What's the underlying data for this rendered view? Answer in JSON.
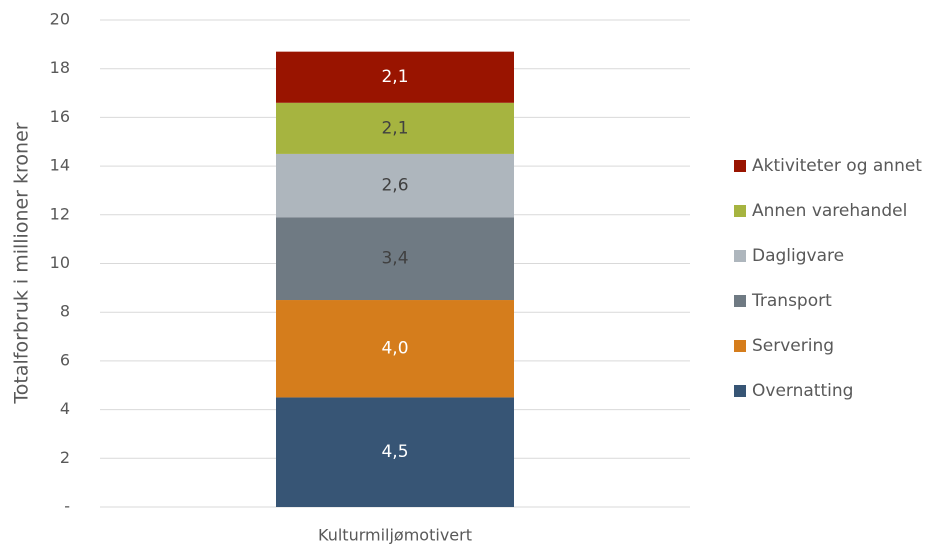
{
  "chart_data": {
    "type": "stacked_bar",
    "y_label": "Totalforbruk i millioner kroner",
    "categories": [
      "Kulturmiljømotivert"
    ],
    "series": [
      {
        "name": "Overnatting",
        "color": "#375575",
        "label_color": "#ffffff",
        "values": [
          4.5
        ],
        "value_labels": [
          "4,5"
        ]
      },
      {
        "name": "Servering",
        "color": "#d57d1c",
        "label_color": "#ffffff",
        "values": [
          4.0
        ],
        "value_labels": [
          "4,0"
        ]
      },
      {
        "name": "Transport",
        "color": "#6f7a83",
        "label_color": "#404040",
        "values": [
          3.4
        ],
        "value_labels": [
          "3,4"
        ]
      },
      {
        "name": "Dagligvare",
        "color": "#aeb6bd",
        "label_color": "#404040",
        "values": [
          2.6
        ],
        "value_labels": [
          "2,6"
        ]
      },
      {
        "name": "Annen varehandel",
        "color": "#a6b440",
        "label_color": "#404040",
        "values": [
          2.1
        ],
        "value_labels": [
          "2,1"
        ]
      },
      {
        "name": "Aktiviteter og annet",
        "color": "#991400",
        "label_color": "#ffffff",
        "values": [
          2.1
        ],
        "value_labels": [
          "2,1"
        ]
      }
    ],
    "ylim": [
      0,
      20
    ],
    "yticks": [
      {
        "value": 0,
        "label": "-"
      },
      2,
      4,
      6,
      8,
      10,
      12,
      14,
      16,
      18,
      20
    ],
    "grid": true,
    "legend": "right"
  }
}
